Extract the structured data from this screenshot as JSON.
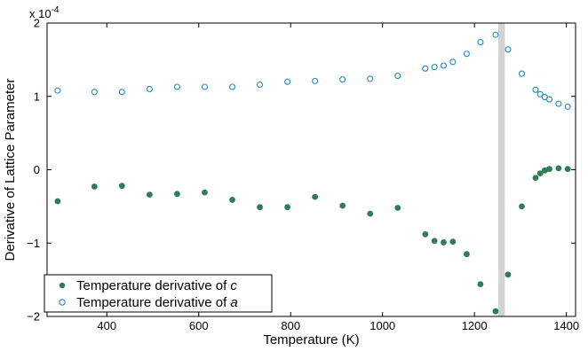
{
  "chart_data": {
    "type": "scatter",
    "xlabel": "Temperature (K)",
    "ylabel": "Derivative of Lattice Parameter",
    "exponent_label": "x 10",
    "exponent_power": "-4",
    "xlim": [
      270,
      1420
    ],
    "ylim": [
      -2,
      2
    ],
    "x_ticks": [
      400,
      600,
      800,
      1000,
      1200,
      1400
    ],
    "y_ticks": [
      -2,
      -1,
      0,
      1,
      2
    ],
    "y_tick_labels": [
      "−2",
      "−1",
      "0",
      "1",
      "2"
    ],
    "grid": false,
    "legend_position": "bottom-left",
    "colors": {
      "c_series": "#2e7d55",
      "a_series": "#1e88c8",
      "band": "#d3d3d3"
    },
    "shaded_band": [
      1252,
      1266
    ],
    "series": [
      {
        "name_prefix": "Temperature derivative of ",
        "name_var": "c",
        "marker": "filled",
        "x": [
          293,
          373,
          433,
          493,
          553,
          613,
          673,
          733,
          793,
          853,
          913,
          973,
          1033,
          1093,
          1113,
          1133,
          1153,
          1183,
          1213,
          1246,
          1273,
          1303,
          1333,
          1343,
          1353,
          1363,
          1383,
          1403
        ],
        "y": [
          -0.43,
          -0.23,
          -0.22,
          -0.34,
          -0.33,
          -0.31,
          -0.41,
          -0.51,
          -0.51,
          -0.37,
          -0.49,
          -0.6,
          -0.52,
          -0.88,
          -0.97,
          -0.99,
          -0.98,
          -1.15,
          -1.56,
          -1.93,
          -1.43,
          -0.5,
          -0.11,
          -0.05,
          -0.01,
          0.01,
          0.02,
          0.01
        ]
      },
      {
        "name_prefix": "Temperature derivative of ",
        "name_var": "a",
        "marker": "open",
        "x": [
          293,
          373,
          433,
          493,
          553,
          613,
          673,
          733,
          793,
          853,
          913,
          973,
          1033,
          1093,
          1113,
          1133,
          1153,
          1183,
          1213,
          1246,
          1273,
          1303,
          1333,
          1343,
          1353,
          1363,
          1383,
          1403
        ],
        "y": [
          1.08,
          1.06,
          1.06,
          1.1,
          1.13,
          1.13,
          1.13,
          1.16,
          1.2,
          1.21,
          1.23,
          1.24,
          1.28,
          1.38,
          1.4,
          1.42,
          1.47,
          1.58,
          1.74,
          1.84,
          1.64,
          1.31,
          1.09,
          1.03,
          0.99,
          0.96,
          0.9,
          0.86
        ]
      }
    ]
  }
}
